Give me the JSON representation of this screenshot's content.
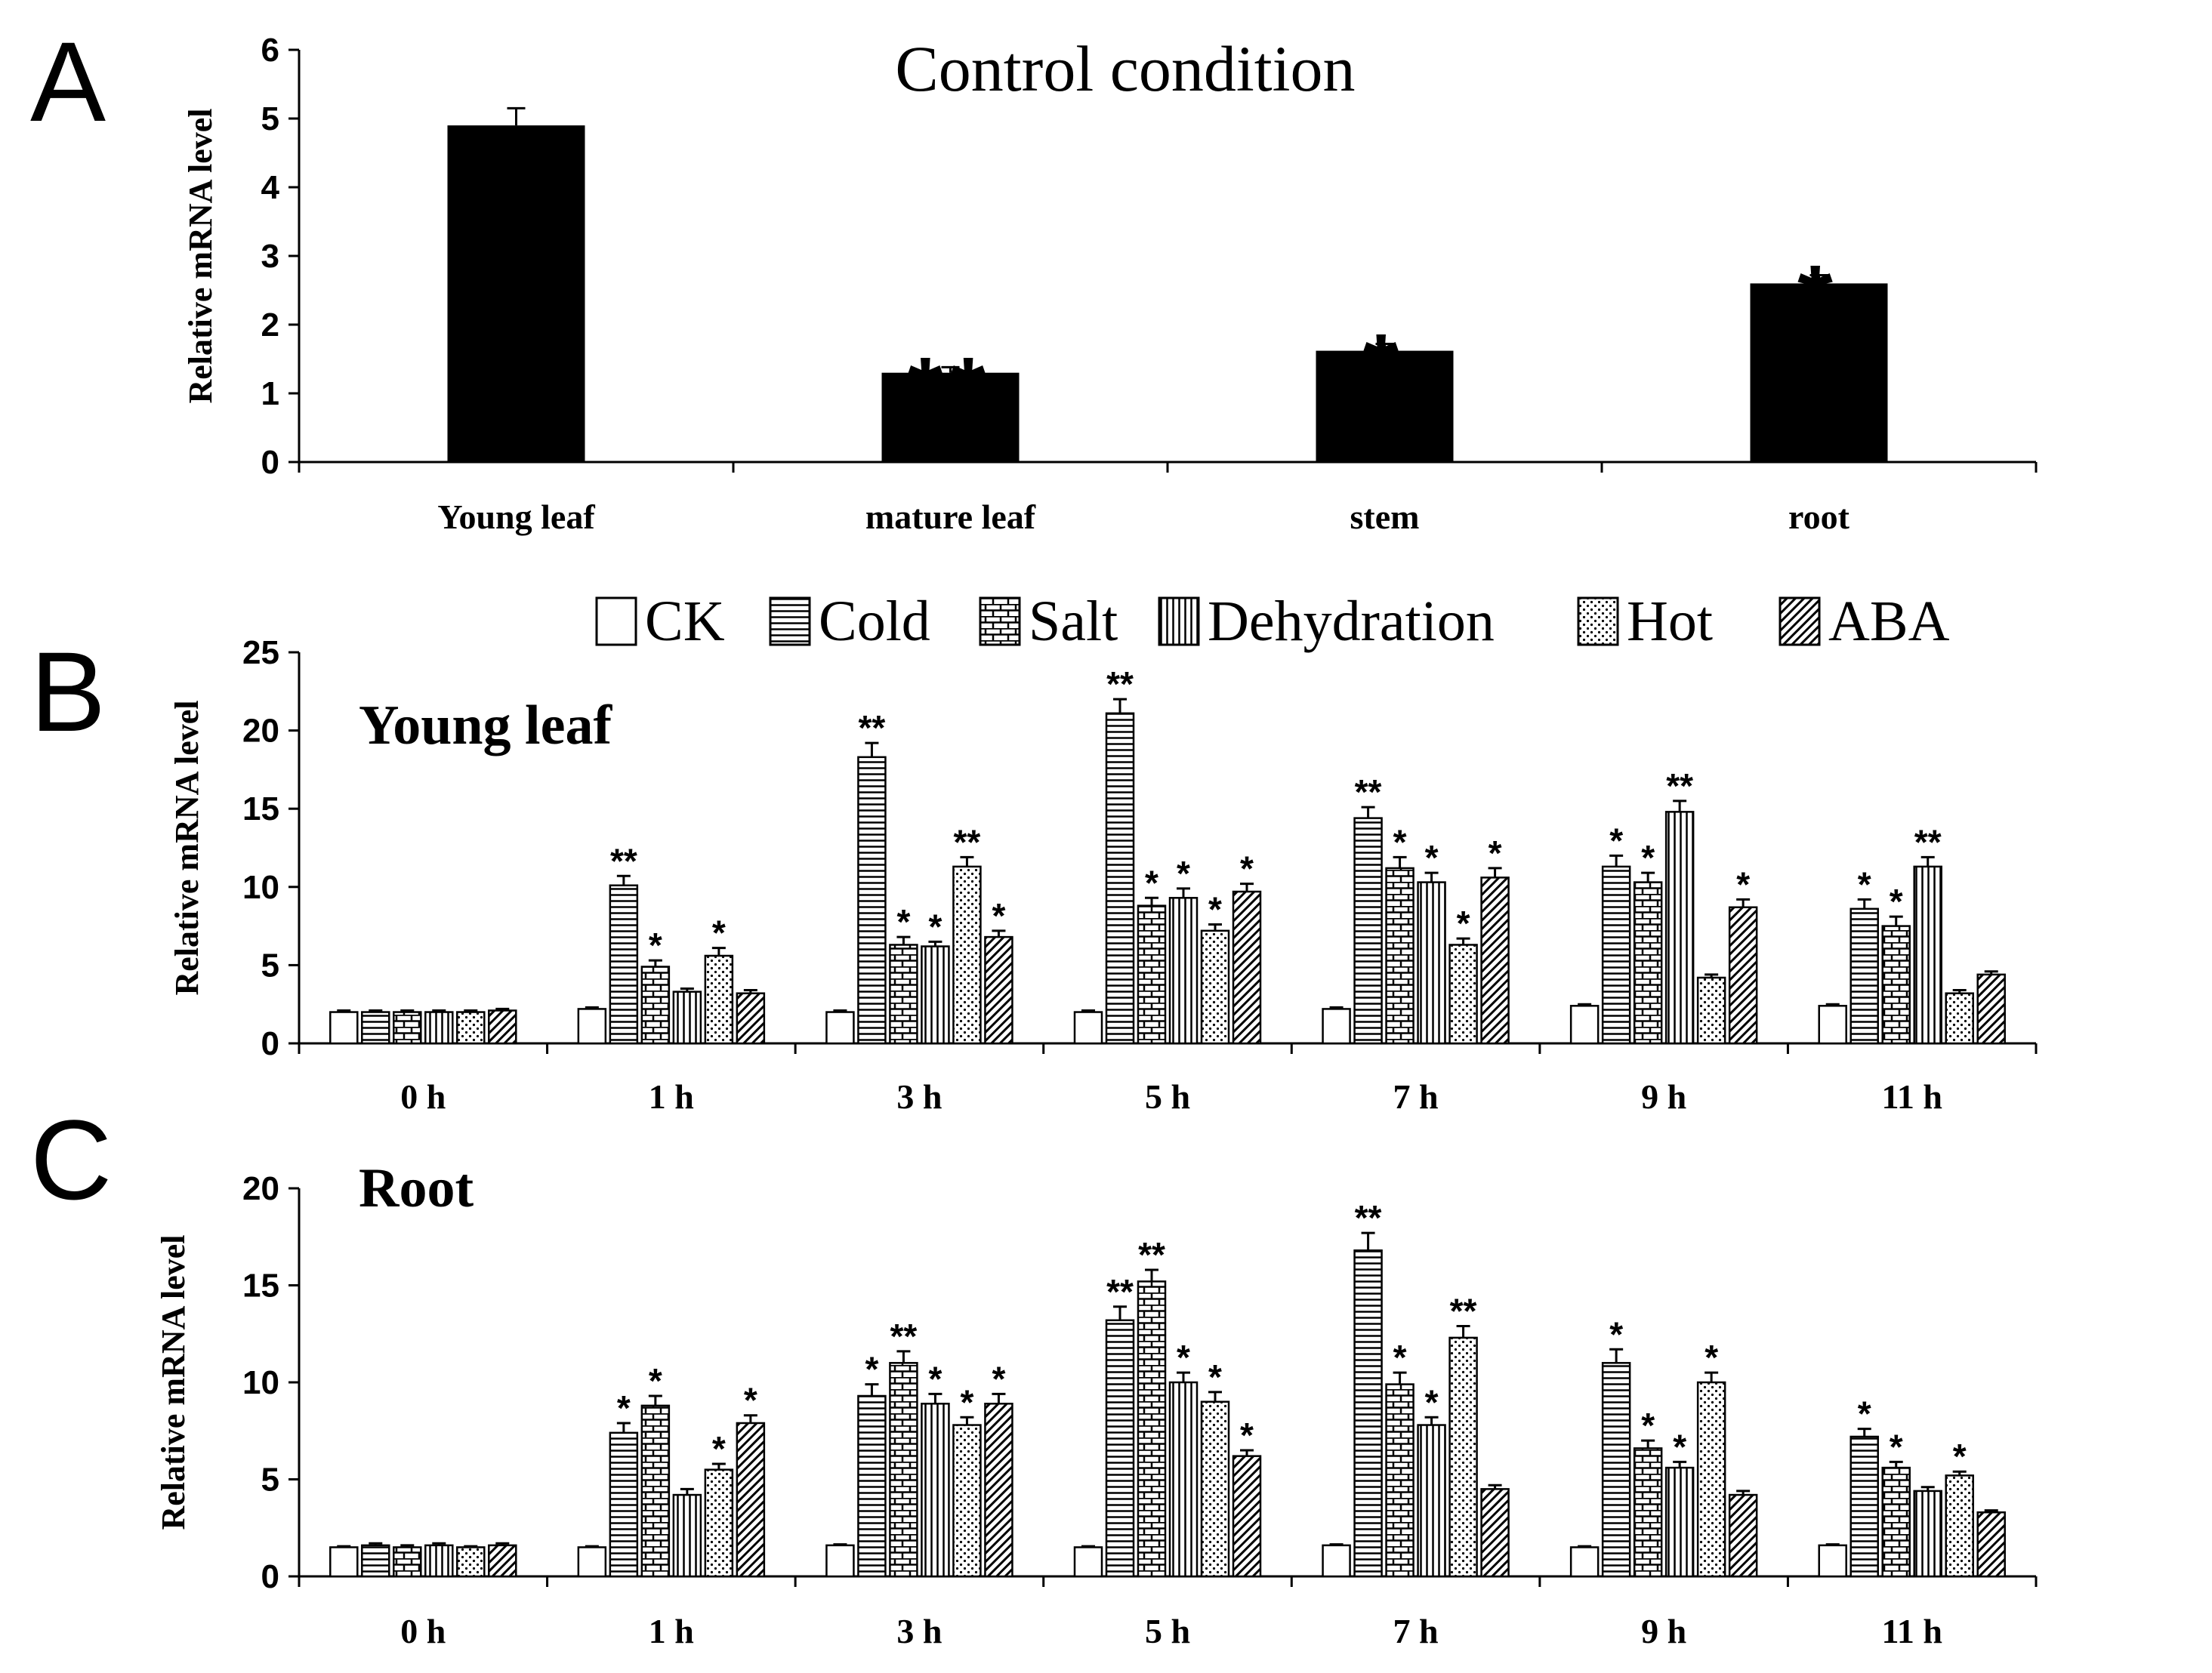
{
  "figure": {
    "panel_letters": [
      "A",
      "B",
      "C"
    ]
  },
  "colors": {
    "bar": "#000000",
    "axis": "#000000",
    "background": "#ffffff"
  },
  "chart_data": [
    {
      "id": "A",
      "type": "bar",
      "title": "Control condition",
      "ylabel": "Relative mRNA level",
      "ylim": [
        0,
        6
      ],
      "yticks": [
        "0",
        "1",
        "2",
        "3",
        "4",
        "5",
        "6"
      ],
      "categories": [
        "Young leaf",
        "mature leaf",
        "stem",
        "root"
      ],
      "values": [
        4.9,
        1.3,
        1.62,
        2.6
      ],
      "errors": [
        0.25,
        0.08,
        0.1,
        0.12
      ],
      "significance": [
        "",
        "**",
        "*",
        "*"
      ],
      "grid": false
    },
    {
      "id": "B",
      "type": "bar",
      "subtitle": "Young leaf",
      "ylabel": "Relative mRNA level",
      "ylim": [
        0,
        25
      ],
      "yticks": [
        "0",
        "5",
        "10",
        "15",
        "20",
        "25"
      ],
      "categories": [
        "0 h",
        "1 h",
        "3 h",
        "5 h",
        "7 h",
        "9 h",
        "11 h"
      ],
      "legend": [
        "CK",
        "Cold",
        "Salt",
        "Dehydration",
        "Hot",
        "ABA"
      ],
      "legend_position": "top",
      "series": [
        {
          "name": "CK",
          "pattern": "empty",
          "values": [
            2.0,
            2.2,
            2.0,
            2.0,
            2.2,
            2.4,
            2.4
          ],
          "errors": [
            0.1,
            0.1,
            0.1,
            0.1,
            0.1,
            0.1,
            0.1
          ],
          "significance": [
            "",
            "",
            "",
            "",
            "",
            "",
            ""
          ]
        },
        {
          "name": "Cold",
          "pattern": "horizontal",
          "values": [
            2.0,
            10.1,
            18.3,
            21.1,
            14.4,
            11.3,
            8.6
          ],
          "errors": [
            0.1,
            0.6,
            0.9,
            0.9,
            0.7,
            0.7,
            0.6
          ],
          "significance": [
            "",
            "**",
            "**",
            "**",
            "**",
            "*",
            "*"
          ]
        },
        {
          "name": "Salt",
          "pattern": "brick",
          "values": [
            2.0,
            4.9,
            6.3,
            8.8,
            11.2,
            10.3,
            7.5
          ],
          "errors": [
            0.1,
            0.4,
            0.5,
            0.5,
            0.7,
            0.6,
            0.6
          ],
          "significance": [
            "",
            "*",
            "*",
            "*",
            "*",
            "*",
            "*"
          ]
        },
        {
          "name": "Dehydration",
          "pattern": "vertical",
          "values": [
            2.0,
            3.3,
            6.2,
            9.3,
            10.3,
            14.8,
            11.3
          ],
          "errors": [
            0.1,
            0.2,
            0.3,
            0.6,
            0.6,
            0.7,
            0.6
          ],
          "significance": [
            "",
            "",
            "*",
            "*",
            "*",
            "**",
            "**"
          ]
        },
        {
          "name": "Hot",
          "pattern": "dots",
          "values": [
            2.0,
            5.6,
            11.3,
            7.2,
            6.3,
            4.2,
            3.2
          ],
          "errors": [
            0.1,
            0.5,
            0.6,
            0.4,
            0.4,
            0.2,
            0.2
          ],
          "significance": [
            "",
            "*",
            "**",
            "*",
            "*",
            "",
            ""
          ]
        },
        {
          "name": "ABA",
          "pattern": "diagonal",
          "values": [
            2.1,
            3.2,
            6.8,
            9.7,
            10.6,
            8.7,
            4.4
          ],
          "errors": [
            0.1,
            0.2,
            0.4,
            0.5,
            0.6,
            0.5,
            0.2
          ],
          "significance": [
            "",
            "",
            "*",
            "*",
            "*",
            "*",
            ""
          ]
        }
      ],
      "grid": false
    },
    {
      "id": "C",
      "type": "bar",
      "subtitle": "Root",
      "ylabel": "Relative mRNA level",
      "ylim": [
        0,
        20
      ],
      "yticks": [
        "0",
        "5",
        "10",
        "15",
        "20"
      ],
      "categories": [
        "0 h",
        "1 h",
        "3 h",
        "5 h",
        "7 h",
        "9 h",
        "11 h"
      ],
      "series": [
        {
          "name": "CK",
          "pattern": "empty",
          "values": [
            1.5,
            1.5,
            1.6,
            1.5,
            1.6,
            1.5,
            1.6
          ],
          "errors": [
            0.05,
            0.05,
            0.05,
            0.05,
            0.05,
            0.05,
            0.05
          ],
          "significance": [
            "",
            "",
            "",
            "",
            "",
            "",
            ""
          ]
        },
        {
          "name": "Cold",
          "pattern": "horizontal",
          "values": [
            1.6,
            7.4,
            9.3,
            13.2,
            16.8,
            11.0,
            7.2
          ],
          "errors": [
            0.1,
            0.5,
            0.6,
            0.7,
            0.9,
            0.7,
            0.4
          ],
          "significance": [
            "",
            "*",
            "*",
            "**",
            "**",
            "*",
            "*"
          ]
        },
        {
          "name": "Salt",
          "pattern": "brick",
          "values": [
            1.5,
            8.8,
            11.0,
            15.2,
            9.9,
            6.6,
            5.6
          ],
          "errors": [
            0.1,
            0.5,
            0.6,
            0.6,
            0.6,
            0.4,
            0.3
          ],
          "significance": [
            "",
            "*",
            "**",
            "**",
            "*",
            "*",
            "*"
          ]
        },
        {
          "name": "Dehydration",
          "pattern": "vertical",
          "values": [
            1.6,
            4.2,
            8.9,
            10.0,
            7.8,
            5.6,
            4.4
          ],
          "errors": [
            0.1,
            0.3,
            0.5,
            0.5,
            0.4,
            0.3,
            0.2
          ],
          "significance": [
            "",
            "",
            "*",
            "*",
            "*",
            "*",
            ""
          ]
        },
        {
          "name": "Hot",
          "pattern": "dots",
          "values": [
            1.5,
            5.5,
            7.8,
            9.0,
            12.3,
            10.0,
            5.2
          ],
          "errors": [
            0.05,
            0.3,
            0.4,
            0.5,
            0.6,
            0.5,
            0.2
          ],
          "significance": [
            "",
            "*",
            "*",
            "*",
            "**",
            "*",
            "*"
          ]
        },
        {
          "name": "ABA",
          "pattern": "diagonal",
          "values": [
            1.6,
            7.9,
            8.9,
            6.2,
            4.5,
            4.2,
            3.3
          ],
          "errors": [
            0.1,
            0.4,
            0.5,
            0.3,
            0.2,
            0.2,
            0.1
          ],
          "significance": [
            "",
            "*",
            "*",
            "*",
            "",
            "",
            ""
          ]
        }
      ],
      "grid": false
    }
  ]
}
